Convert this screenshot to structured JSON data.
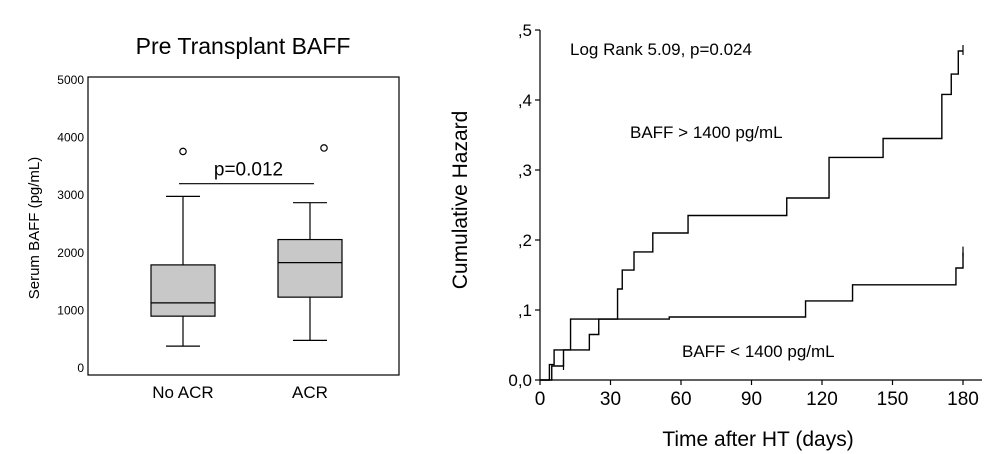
{
  "colors": {
    "box_fill": "#c8c8c8",
    "ink": "#000000",
    "background": "#ffffff"
  },
  "chart_data": [
    {
      "type": "box",
      "title": "Pre Transplant BAFF",
      "ylabel": "Serum BAFF (pg/mL)",
      "xlabel": "",
      "ylim": [
        0,
        5000
      ],
      "yticks": [
        0,
        1000,
        2000,
        3000,
        4000,
        5000
      ],
      "grid": false,
      "categories": [
        "No ACR",
        "ACR"
      ],
      "boxes": [
        {
          "name": "No ACR",
          "whisker_low": 380,
          "q1": 900,
          "median": 1130,
          "q3": 1790,
          "whisker_high": 2980,
          "outliers": [
            3760
          ]
        },
        {
          "name": "ACR",
          "whisker_low": 480,
          "q1": 1230,
          "median": 1830,
          "q3": 2230,
          "whisker_high": 2870,
          "outliers": [
            3820
          ]
        }
      ],
      "annotation": {
        "text": "p=0.012",
        "bracket_y": 3200
      }
    },
    {
      "type": "line",
      "step": true,
      "ylabel": "Cumulative Hazard",
      "xlabel": "Time after HT (days)",
      "xlim": [
        0,
        180
      ],
      "ylim": [
        0,
        0.5
      ],
      "xticks": [
        0,
        30,
        60,
        90,
        120,
        150,
        180
      ],
      "yticks": [
        {
          "value": 0.0,
          "label": "0,0"
        },
        {
          "value": 0.1,
          "label": ",1"
        },
        {
          "value": 0.2,
          "label": ",2"
        },
        {
          "value": 0.3,
          "label": ",3"
        },
        {
          "value": 0.4,
          "label": ",4"
        },
        {
          "value": 0.5,
          "label": ",5"
        }
      ],
      "grid": false,
      "annotation": "Log Rank 5.09, p=0.024",
      "series": [
        {
          "name": "BAFF > 1400 pg/mL",
          "x": [
            0,
            4,
            6,
            13,
            33,
            35,
            40,
            48,
            63,
            105,
            123,
            146,
            171,
            175,
            178,
            180
          ],
          "y": [
            0,
            0.022,
            0.043,
            0.087,
            0.13,
            0.157,
            0.183,
            0.21,
            0.235,
            0.26,
            0.318,
            0.345,
            0.408,
            0.437,
            0.47,
            0.47
          ],
          "censored": [
            {
              "x": 180,
              "y": 0.47
            }
          ]
        },
        {
          "name": "BAFF < 1400 pg/mL",
          "x": [
            0,
            5,
            10,
            21,
            25,
            55,
            113,
            133,
            177,
            180
          ],
          "y": [
            0,
            0.02,
            0.043,
            0.065,
            0.087,
            0.09,
            0.113,
            0.136,
            0.16,
            0.182
          ],
          "censored": [
            {
              "x": 10,
              "y": 0.02
            },
            {
              "x": 180,
              "y": 0.182
            }
          ]
        }
      ],
      "series_labels": [
        "BAFF > 1400 pg/mL",
        "BAFF < 1400 pg/mL"
      ]
    }
  ]
}
